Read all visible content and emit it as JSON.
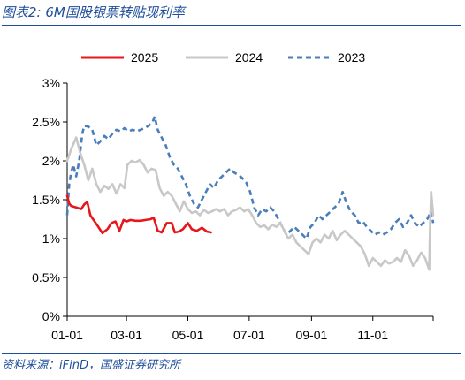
{
  "title": "图表2:  6M国股银票转贴现利率",
  "source": "资料来源：iFinD，国盛证券研究所",
  "chart_data": {
    "type": "line",
    "x_axis": {
      "ticks": [
        "01-01",
        "03-01",
        "05-01",
        "07-01",
        "09-01",
        "11-01"
      ],
      "range_days": [
        0,
        364
      ]
    },
    "y_axis": {
      "ticks": [
        "0%",
        "0.5%",
        "1%",
        "1.5%",
        "2%",
        "2.5%",
        "3%"
      ],
      "ylim": [
        0,
        3
      ]
    },
    "legend_position": "top",
    "grid": false,
    "series": [
      {
        "name": "2025",
        "color": "#e8161b",
        "dash": "solid",
        "points": [
          [
            "01-01",
            1.55
          ],
          [
            "01-03",
            1.45
          ],
          [
            "01-05",
            1.42
          ],
          [
            "01-10",
            1.4
          ],
          [
            "01-15",
            1.38
          ],
          [
            "01-18",
            1.44
          ],
          [
            "01-21",
            1.47
          ],
          [
            "01-24",
            1.3
          ],
          [
            "02-01",
            1.15
          ],
          [
            "02-05",
            1.07
          ],
          [
            "02-10",
            1.12
          ],
          [
            "02-14",
            1.2
          ],
          [
            "02-18",
            1.22
          ],
          [
            "02-22",
            1.1
          ],
          [
            "02-26",
            1.24
          ],
          [
            "03-01",
            1.22
          ],
          [
            "03-05",
            1.24
          ],
          [
            "03-10",
            1.23
          ],
          [
            "03-15",
            1.23
          ],
          [
            "03-20",
            1.24
          ],
          [
            "03-25",
            1.25
          ],
          [
            "03-28",
            1.27
          ],
          [
            "04-01",
            1.1
          ],
          [
            "04-05",
            1.08
          ],
          [
            "04-10",
            1.2
          ],
          [
            "04-15",
            1.2
          ],
          [
            "04-18",
            1.08
          ],
          [
            "04-22",
            1.09
          ],
          [
            "04-26",
            1.12
          ],
          [
            "05-01",
            1.2
          ],
          [
            "05-05",
            1.12
          ],
          [
            "05-10",
            1.1
          ],
          [
            "05-15",
            1.14
          ],
          [
            "05-20",
            1.09
          ],
          [
            "05-24",
            1.08
          ]
        ]
      },
      {
        "name": "2024",
        "color": "#c8c8c8",
        "dash": "solid",
        "points": [
          [
            "01-01",
            2.0
          ],
          [
            "01-05",
            2.15
          ],
          [
            "01-10",
            2.3
          ],
          [
            "01-14",
            2.1
          ],
          [
            "01-18",
            1.95
          ],
          [
            "01-22",
            1.75
          ],
          [
            "01-26",
            1.9
          ],
          [
            "01-30",
            1.7
          ],
          [
            "02-03",
            1.6
          ],
          [
            "02-07",
            1.68
          ],
          [
            "02-11",
            1.64
          ],
          [
            "02-15",
            1.7
          ],
          [
            "02-19",
            1.58
          ],
          [
            "02-23",
            1.7
          ],
          [
            "02-27",
            1.65
          ],
          [
            "03-02",
            1.95
          ],
          [
            "03-06",
            2.0
          ],
          [
            "03-10",
            1.98
          ],
          [
            "03-14",
            2.01
          ],
          [
            "03-18",
            1.95
          ],
          [
            "03-22",
            1.85
          ],
          [
            "03-26",
            1.9
          ],
          [
            "03-30",
            1.88
          ],
          [
            "04-03",
            1.65
          ],
          [
            "04-07",
            1.55
          ],
          [
            "04-11",
            1.6
          ],
          [
            "04-15",
            1.55
          ],
          [
            "04-19",
            1.45
          ],
          [
            "04-23",
            1.35
          ],
          [
            "04-27",
            1.48
          ],
          [
            "05-01",
            1.38
          ],
          [
            "05-05",
            1.33
          ],
          [
            "05-09",
            1.35
          ],
          [
            "05-13",
            1.3
          ],
          [
            "05-17",
            1.37
          ],
          [
            "05-21",
            1.33
          ],
          [
            "05-25",
            1.35
          ],
          [
            "05-29",
            1.38
          ],
          [
            "06-02",
            1.35
          ],
          [
            "06-06",
            1.38
          ],
          [
            "06-10",
            1.3
          ],
          [
            "06-14",
            1.35
          ],
          [
            "06-18",
            1.37
          ],
          [
            "06-22",
            1.4
          ],
          [
            "06-26",
            1.35
          ],
          [
            "06-30",
            1.38
          ],
          [
            "07-04",
            1.3
          ],
          [
            "07-08",
            1.2
          ],
          [
            "07-12",
            1.15
          ],
          [
            "07-16",
            1.17
          ],
          [
            "07-20",
            1.12
          ],
          [
            "07-24",
            1.18
          ],
          [
            "07-28",
            1.15
          ],
          [
            "08-01",
            1.2
          ],
          [
            "08-05",
            1.1
          ],
          [
            "08-09",
            1.0
          ],
          [
            "08-13",
            1.05
          ],
          [
            "08-17",
            0.95
          ],
          [
            "08-21",
            0.9
          ],
          [
            "08-25",
            0.85
          ],
          [
            "08-29",
            0.8
          ],
          [
            "09-02",
            0.95
          ],
          [
            "09-06",
            1.0
          ],
          [
            "09-10",
            0.95
          ],
          [
            "09-14",
            1.05
          ],
          [
            "09-18",
            1.0
          ],
          [
            "09-22",
            1.1
          ],
          [
            "09-26",
            0.98
          ],
          [
            "09-30",
            1.05
          ],
          [
            "10-04",
            1.1
          ],
          [
            "10-08",
            1.05
          ],
          [
            "10-12",
            1.0
          ],
          [
            "10-16",
            0.95
          ],
          [
            "10-20",
            0.9
          ],
          [
            "10-24",
            0.8
          ],
          [
            "10-28",
            0.65
          ],
          [
            "11-01",
            0.75
          ],
          [
            "11-05",
            0.7
          ],
          [
            "11-09",
            0.65
          ],
          [
            "11-13",
            0.72
          ],
          [
            "11-17",
            0.68
          ],
          [
            "11-21",
            0.7
          ],
          [
            "11-25",
            0.75
          ],
          [
            "11-29",
            0.7
          ],
          [
            "12-03",
            0.85
          ],
          [
            "12-07",
            0.78
          ],
          [
            "12-11",
            0.65
          ],
          [
            "12-15",
            0.72
          ],
          [
            "12-19",
            0.82
          ],
          [
            "12-23",
            0.75
          ],
          [
            "12-27",
            0.6
          ],
          [
            "12-28",
            1.2
          ],
          [
            "12-29",
            1.6
          ],
          [
            "12-31",
            1.3
          ]
        ]
      },
      {
        "name": "2023",
        "color": "#4a7ebb",
        "dash": "dashed",
        "points": [
          [
            "01-01",
            1.3
          ],
          [
            "01-03",
            1.7
          ],
          [
            "01-05",
            1.85
          ],
          [
            "01-07",
            1.95
          ],
          [
            "01-10",
            1.8
          ],
          [
            "01-13",
            2.0
          ],
          [
            "01-16",
            2.35
          ],
          [
            "01-18",
            2.45
          ],
          [
            "01-22",
            2.44
          ],
          [
            "01-26",
            2.4
          ],
          [
            "01-30",
            2.2
          ],
          [
            "02-03",
            2.25
          ],
          [
            "02-07",
            2.32
          ],
          [
            "02-11",
            2.28
          ],
          [
            "02-15",
            2.35
          ],
          [
            "02-19",
            2.4
          ],
          [
            "02-23",
            2.38
          ],
          [
            "02-27",
            2.42
          ],
          [
            "03-03",
            2.38
          ],
          [
            "03-07",
            2.4
          ],
          [
            "03-11",
            2.38
          ],
          [
            "03-15",
            2.4
          ],
          [
            "03-19",
            2.42
          ],
          [
            "03-23",
            2.45
          ],
          [
            "03-27",
            2.5
          ],
          [
            "03-29",
            2.57
          ],
          [
            "04-01",
            2.4
          ],
          [
            "04-05",
            2.3
          ],
          [
            "04-09",
            2.2
          ],
          [
            "04-13",
            2.05
          ],
          [
            "04-17",
            1.95
          ],
          [
            "04-21",
            1.9
          ],
          [
            "04-25",
            1.8
          ],
          [
            "04-29",
            1.7
          ],
          [
            "05-03",
            1.55
          ],
          [
            "05-07",
            1.45
          ],
          [
            "05-11",
            1.4
          ],
          [
            "05-15",
            1.5
          ],
          [
            "05-19",
            1.6
          ],
          [
            "05-23",
            1.7
          ],
          [
            "05-27",
            1.65
          ],
          [
            "05-31",
            1.75
          ],
          [
            "06-04",
            1.8
          ],
          [
            "06-08",
            1.85
          ],
          [
            "06-12",
            1.9
          ],
          [
            "06-16",
            1.85
          ],
          [
            "06-20",
            1.82
          ],
          [
            "06-24",
            1.78
          ],
          [
            "06-28",
            1.72
          ],
          [
            "07-02",
            1.6
          ],
          [
            "07-06",
            1.4
          ],
          [
            "07-10",
            1.3
          ],
          [
            "07-14",
            1.38
          ],
          [
            "07-18",
            1.35
          ],
          [
            "07-22",
            1.4
          ],
          [
            "07-26",
            1.35
          ],
          [
            "07-30",
            1.25
          ],
          [
            "08-03",
            1.15
          ],
          [
            "08-07",
            1.05
          ],
          [
            "08-11",
            1.1
          ],
          [
            "08-15",
            1.15
          ],
          [
            "08-19",
            1.1
          ],
          [
            "08-23",
            1.05
          ],
          [
            "08-27",
            1.0
          ],
          [
            "08-31",
            1.15
          ],
          [
            "09-04",
            1.2
          ],
          [
            "09-08",
            1.3
          ],
          [
            "09-12",
            1.25
          ],
          [
            "09-16",
            1.3
          ],
          [
            "09-20",
            1.35
          ],
          [
            "09-24",
            1.4
          ],
          [
            "09-28",
            1.45
          ],
          [
            "10-02",
            1.6
          ],
          [
            "10-06",
            1.45
          ],
          [
            "10-10",
            1.35
          ],
          [
            "10-14",
            1.3
          ],
          [
            "10-18",
            1.2
          ],
          [
            "10-22",
            1.22
          ],
          [
            "10-26",
            1.15
          ],
          [
            "10-30",
            1.1
          ],
          [
            "11-03",
            1.05
          ],
          [
            "11-07",
            1.08
          ],
          [
            "11-11",
            1.05
          ],
          [
            "11-15",
            1.08
          ],
          [
            "11-19",
            1.12
          ],
          [
            "11-23",
            1.2
          ],
          [
            "11-27",
            1.25
          ],
          [
            "12-01",
            1.15
          ],
          [
            "12-05",
            1.2
          ],
          [
            "12-09",
            1.3
          ],
          [
            "12-13",
            1.2
          ],
          [
            "12-17",
            1.15
          ],
          [
            "12-21",
            1.2
          ],
          [
            "12-25",
            1.25
          ],
          [
            "12-29",
            1.35
          ],
          [
            "12-31",
            1.2
          ]
        ]
      }
    ]
  }
}
